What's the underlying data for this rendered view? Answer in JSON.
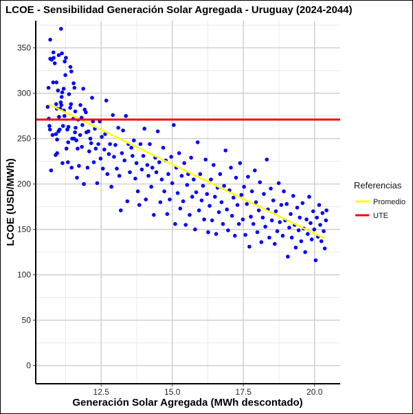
{
  "chart_data": {
    "type": "scatter",
    "title": "LCOE - Sensibilidad Generación Solar Agregada - Uruguay (2024-2044)",
    "xlabel": "Generación Solar Agregada (MWh descontado)",
    "ylabel": "LCOE (USD/MWh)",
    "xlim": [
      10.2,
      20.9
    ],
    "ylim": [
      -20,
      380
    ],
    "x_ticks": [
      12.5,
      15.0,
      17.5,
      20.0
    ],
    "x_tick_labels": [
      "12.5",
      "15.0",
      "17.5",
      "20.0"
    ],
    "y_ticks": [
      0,
      50,
      100,
      150,
      200,
      250,
      300,
      350
    ],
    "y_tick_labels": [
      "0",
      "50",
      "100",
      "150",
      "200",
      "250",
      "300",
      "350"
    ],
    "grid": true,
    "legend": {
      "title": "Referencias",
      "placement": "right",
      "entries": [
        {
          "label": "Promedio",
          "color": "#ffff00"
        },
        {
          "label": "UTE",
          "color": "#ff0000"
        }
      ]
    },
    "point_color": "#0000ff",
    "series": [
      {
        "name": "Promedio",
        "type": "line",
        "color": "#ffff00",
        "x": [
          10.65,
          20.35
        ],
        "y": [
          288,
          140
        ]
      },
      {
        "name": "UTE",
        "type": "hline",
        "color": "#ff0000",
        "y": 271
      }
    ],
    "scatter_points": [
      [
        10.62,
        285
      ],
      [
        10.65,
        306
      ],
      [
        10.66,
        272
      ],
      [
        10.68,
        264
      ],
      [
        10.7,
        260
      ],
      [
        10.71,
        338
      ],
      [
        10.71,
        359
      ],
      [
        10.74,
        215
      ],
      [
        10.76,
        337
      ],
      [
        10.79,
        254
      ],
      [
        10.81,
        312
      ],
      [
        10.82,
        345
      ],
      [
        10.83,
        339
      ],
      [
        10.87,
        333
      ],
      [
        10.9,
        232
      ],
      [
        10.91,
        255
      ],
      [
        10.92,
        288
      ],
      [
        10.93,
        312
      ],
      [
        10.94,
        283
      ],
      [
        10.95,
        249
      ],
      [
        10.95,
        234
      ],
      [
        10.98,
        303
      ],
      [
        11.0,
        258
      ],
      [
        11.01,
        342
      ],
      [
        11.02,
        274
      ],
      [
        11.04,
        260
      ],
      [
        11.06,
        283
      ],
      [
        11.08,
        290
      ],
      [
        11.09,
        371
      ],
      [
        11.1,
        287
      ],
      [
        11.11,
        296
      ],
      [
        11.12,
        344
      ],
      [
        11.13,
        301
      ],
      [
        11.14,
        223
      ],
      [
        11.16,
        264
      ],
      [
        11.18,
        305
      ],
      [
        11.19,
        281
      ],
      [
        11.21,
        275
      ],
      [
        11.22,
        335
      ],
      [
        11.24,
        320
      ],
      [
        11.26,
        339
      ],
      [
        11.28,
        239
      ],
      [
        11.31,
        260
      ],
      [
        11.33,
        224
      ],
      [
        11.34,
        246
      ],
      [
        11.35,
        263
      ],
      [
        11.37,
        299
      ],
      [
        11.41,
        284
      ],
      [
        11.42,
        329
      ],
      [
        11.44,
        288
      ],
      [
        11.45,
        324
      ],
      [
        11.46,
        218
      ],
      [
        11.48,
        250
      ],
      [
        11.52,
        272
      ],
      [
        11.53,
        311
      ],
      [
        11.55,
        250
      ],
      [
        11.56,
        306
      ],
      [
        11.58,
        257
      ],
      [
        11.59,
        280
      ],
      [
        11.6,
        262
      ],
      [
        11.63,
        248
      ],
      [
        11.65,
        207
      ],
      [
        11.67,
        239
      ],
      [
        11.69,
        271
      ],
      [
        11.72,
        220
      ],
      [
        11.76,
        254
      ],
      [
        11.77,
        287
      ],
      [
        11.81,
        273
      ],
      [
        11.82,
        241
      ],
      [
        11.84,
        265
      ],
      [
        11.87,
        305
      ],
      [
        11.89,
        200
      ],
      [
        11.92,
        282
      ],
      [
        11.96,
        279
      ],
      [
        11.98,
        257
      ],
      [
        12.02,
        218
      ],
      [
        12.05,
        258
      ],
      [
        12.08,
        236
      ],
      [
        12.12,
        250
      ],
      [
        12.15,
        245
      ],
      [
        12.18,
        295
      ],
      [
        12.21,
        269
      ],
      [
        12.24,
        224
      ],
      [
        12.28,
        261
      ],
      [
        12.31,
        239
      ],
      [
        12.36,
        201
      ],
      [
        12.4,
        244
      ],
      [
        12.45,
        269
      ],
      [
        12.48,
        228
      ],
      [
        12.52,
        252
      ],
      [
        12.56,
        217
      ],
      [
        12.61,
        238
      ],
      [
        12.64,
        255
      ],
      [
        12.68,
        292
      ],
      [
        12.72,
        211
      ],
      [
        12.77,
        233
      ],
      [
        12.81,
        244
      ],
      [
        12.86,
        197
      ],
      [
        12.91,
        276
      ],
      [
        12.95,
        230
      ],
      [
        13.0,
        243
      ],
      [
        13.05,
        217
      ],
      [
        13.1,
        262
      ],
      [
        13.14,
        209
      ],
      [
        13.19,
        171
      ],
      [
        13.23,
        234
      ],
      [
        13.27,
        259
      ],
      [
        13.32,
        226
      ],
      [
        13.37,
        275
      ],
      [
        13.42,
        181
      ],
      [
        13.46,
        244
      ],
      [
        13.51,
        213
      ],
      [
        13.56,
        240
      ],
      [
        13.6,
        231
      ],
      [
        13.65,
        248
      ],
      [
        13.7,
        206
      ],
      [
        13.74,
        223
      ],
      [
        13.79,
        192
      ],
      [
        13.84,
        177
      ],
      [
        13.88,
        244
      ],
      [
        13.93,
        216
      ],
      [
        13.98,
        231
      ],
      [
        14.02,
        261
      ],
      [
        14.07,
        183
      ],
      [
        14.12,
        221
      ],
      [
        14.16,
        209
      ],
      [
        14.21,
        244
      ],
      [
        14.26,
        197
      ],
      [
        14.3,
        218
      ],
      [
        14.35,
        166
      ],
      [
        14.4,
        229
      ],
      [
        14.44,
        213
      ],
      [
        14.49,
        258
      ],
      [
        14.54,
        224
      ],
      [
        14.58,
        180
      ],
      [
        14.63,
        205
      ],
      [
        14.68,
        240
      ],
      [
        14.72,
        192
      ],
      [
        14.77,
        226
      ],
      [
        14.82,
        167
      ],
      [
        14.86,
        211
      ],
      [
        14.91,
        183
      ],
      [
        14.96,
        230
      ],
      [
        15.0,
        201
      ],
      [
        15.05,
        265
      ],
      [
        15.1,
        156
      ],
      [
        15.14,
        218
      ],
      [
        15.19,
        190
      ],
      [
        15.24,
        234
      ],
      [
        15.28,
        173
      ],
      [
        15.33,
        209
      ],
      [
        15.38,
        181
      ],
      [
        15.42,
        223
      ],
      [
        15.47,
        155
      ],
      [
        15.52,
        199
      ],
      [
        15.56,
        211
      ],
      [
        15.61,
        166
      ],
      [
        15.66,
        229
      ],
      [
        15.7,
        186
      ],
      [
        15.75,
        205
      ],
      [
        15.8,
        150
      ],
      [
        15.84,
        191
      ],
      [
        15.89,
        246
      ],
      [
        15.94,
        171
      ],
      [
        15.98,
        211
      ],
      [
        16.03,
        182
      ],
      [
        16.08,
        198
      ],
      [
        16.12,
        161
      ],
      [
        16.17,
        227
      ],
      [
        16.22,
        189
      ],
      [
        16.26,
        147
      ],
      [
        16.31,
        176
      ],
      [
        16.36,
        205
      ],
      [
        16.4,
        160
      ],
      [
        16.45,
        221
      ],
      [
        16.5,
        186
      ],
      [
        16.54,
        145
      ],
      [
        16.59,
        196
      ],
      [
        16.64,
        169
      ],
      [
        16.68,
        211
      ],
      [
        16.73,
        180
      ],
      [
        16.78,
        156
      ],
      [
        16.82,
        198
      ],
      [
        16.87,
        237
      ],
      [
        16.92,
        172
      ],
      [
        16.96,
        149
      ],
      [
        17.01,
        193
      ],
      [
        17.06,
        218
      ],
      [
        17.1,
        165
      ],
      [
        17.15,
        185
      ],
      [
        17.2,
        143
      ],
      [
        17.24,
        207
      ],
      [
        17.29,
        177
      ],
      [
        17.34,
        156
      ],
      [
        17.38,
        223
      ],
      [
        17.43,
        188
      ],
      [
        17.48,
        161
      ],
      [
        17.52,
        197
      ],
      [
        17.57,
        144
      ],
      [
        17.62,
        178
      ],
      [
        17.66,
        208
      ],
      [
        17.71,
        131
      ],
      [
        17.76,
        164
      ],
      [
        17.8,
        192
      ],
      [
        17.85,
        156
      ],
      [
        17.9,
        215
      ],
      [
        17.94,
        180
      ],
      [
        17.99,
        147
      ],
      [
        18.04,
        171
      ],
      [
        18.08,
        202
      ],
      [
        18.13,
        136
      ],
      [
        18.18,
        163
      ],
      [
        18.22,
        189
      ],
      [
        18.27,
        153
      ],
      [
        18.32,
        227
      ],
      [
        18.36,
        172
      ],
      [
        18.41,
        141
      ],
      [
        18.46,
        195
      ],
      [
        18.5,
        160
      ],
      [
        18.55,
        182
      ],
      [
        18.6,
        134
      ],
      [
        18.64,
        170
      ],
      [
        18.69,
        148
      ],
      [
        18.74,
        201
      ],
      [
        18.78,
        158
      ],
      [
        18.83,
        177
      ],
      [
        18.88,
        143
      ],
      [
        18.92,
        192
      ],
      [
        18.97,
        160
      ],
      [
        19.02,
        178
      ],
      [
        19.06,
        120
      ],
      [
        19.11,
        152
      ],
      [
        19.16,
        167
      ],
      [
        19.2,
        141
      ],
      [
        19.25,
        187
      ],
      [
        19.3,
        155
      ],
      [
        19.34,
        130
      ],
      [
        19.39,
        174
      ],
      [
        19.44,
        149
      ],
      [
        19.48,
        163
      ],
      [
        19.53,
        137
      ],
      [
        19.58,
        179
      ],
      [
        19.62,
        151
      ],
      [
        19.67,
        125
      ],
      [
        19.72,
        161
      ],
      [
        19.76,
        145
      ],
      [
        19.81,
        186
      ],
      [
        19.86,
        157
      ],
      [
        19.9,
        139
      ],
      [
        19.95,
        170
      ],
      [
        19.99,
        150
      ],
      [
        20.04,
        116
      ],
      [
        20.08,
        163
      ],
      [
        20.12,
        142
      ],
      [
        20.16,
        177
      ],
      [
        20.2,
        155
      ],
      [
        20.24,
        137
      ],
      [
        20.28,
        168
      ],
      [
        20.32,
        148
      ],
      [
        20.36,
        129
      ],
      [
        20.4,
        160
      ],
      [
        20.42,
        171
      ]
    ]
  }
}
